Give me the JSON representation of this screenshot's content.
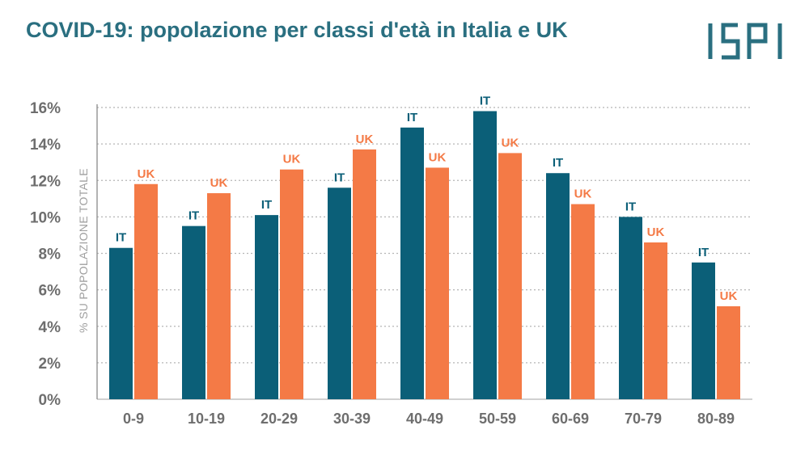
{
  "title": "COVID-19: popolazione per classi d'età in Italia e UK",
  "logo": {
    "text": "ISPI",
    "color": "#2a6f80"
  },
  "colors": {
    "italy": "#0b5f78",
    "uk": "#f47a46",
    "grid": "#b5b5b5",
    "axis": "#6e6e6e"
  },
  "chart_data": {
    "type": "bar",
    "title": "COVID-19: popolazione per classi d'età in Italia e UK",
    "xlabel": "",
    "ylabel": "% SU POPOLAZIONE TOTALE",
    "ylim": [
      0,
      16
    ],
    "yticks": [
      0,
      2,
      4,
      6,
      8,
      10,
      12,
      14,
      16
    ],
    "ytick_labels": [
      "0%",
      "2%",
      "4%",
      "6%",
      "8%",
      "10%",
      "12%",
      "14%",
      "16%"
    ],
    "grid": true,
    "categories": [
      "0-9",
      "10-19",
      "20-29",
      "30-39",
      "40-49",
      "50-59",
      "60-69",
      "70-79",
      "80-89"
    ],
    "series": [
      {
        "label": "IT",
        "values": [
          8.3,
          9.5,
          10.1,
          11.6,
          14.9,
          15.8,
          12.4,
          10.0,
          7.5
        ]
      },
      {
        "label": "UK",
        "values": [
          11.8,
          11.3,
          12.6,
          13.7,
          12.7,
          13.5,
          10.7,
          8.6,
          5.1
        ]
      }
    ]
  }
}
